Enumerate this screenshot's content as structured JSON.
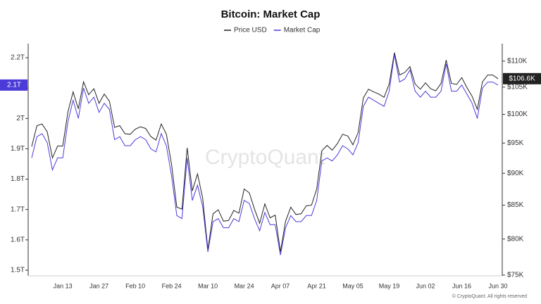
{
  "chart_data": {
    "type": "line",
    "title": "Bitcoin: Market Cap",
    "watermark": "CryptoQuant",
    "footer": "© CryptoQuant. All rights reserved",
    "categories": [
      null,
      null,
      null,
      null,
      null,
      null,
      "Jan 13",
      null,
      null,
      null,
      null,
      null,
      null,
      "Jan 27",
      null,
      null,
      null,
      null,
      null,
      null,
      "Feb 10",
      null,
      null,
      null,
      null,
      null,
      null,
      "Feb 24",
      null,
      null,
      null,
      null,
      null,
      null,
      "Mar 10",
      null,
      null,
      null,
      null,
      null,
      null,
      "Mar 24",
      null,
      null,
      null,
      null,
      null,
      null,
      "Apr 07",
      null,
      null,
      null,
      null,
      null,
      null,
      "Apr 21",
      null,
      null,
      null,
      null,
      null,
      null,
      "May 05",
      null,
      null,
      null,
      null,
      null,
      null,
      "May 19",
      null,
      null,
      null,
      null,
      null,
      null,
      "Jun 02",
      null,
      null,
      null,
      null,
      null,
      null,
      "Jun 16",
      null,
      null,
      null,
      null,
      null,
      null,
      "Jun 30"
    ],
    "series": [
      {
        "name": "Price USD",
        "color": "#222222",
        "axis": "y2",
        "last_label": "$106.6K",
        "values": [
          94400,
          98000,
          98300,
          96900,
          92500,
          94500,
          94500,
          100500,
          104100,
          101000,
          106000,
          103600,
          104700,
          102000,
          103700,
          102400,
          97700,
          98000,
          96600,
          96500,
          97400,
          97800,
          97500,
          96100,
          95500,
          98300,
          96500,
          91400,
          84700,
          84400,
          94200,
          87200,
          89900,
          86100,
          78500,
          83700,
          84300,
          82600,
          82700,
          84200,
          83800,
          87500,
          86900,
          84400,
          82300,
          85200,
          83100,
          83500,
          78200,
          82600,
          84700,
          83600,
          83700,
          84900,
          85000,
          87500,
          93700,
          94600,
          93800,
          94900,
          96500,
          96200,
          94700,
          96800,
          103000,
          104600,
          104100,
          103700,
          103100,
          105600,
          111700,
          107300,
          107800,
          108900,
          105600,
          104600,
          105800,
          104700,
          104300,
          105700,
          110200,
          105700,
          105500,
          106800,
          104900,
          103300,
          100900,
          106000,
          107300,
          107300,
          106600
        ]
      },
      {
        "name": "Market Cap",
        "color": "#4b3bd9",
        "axis": "y",
        "last_label": "2.1T",
        "values": [
          1.87,
          1.94,
          1.95,
          1.92,
          1.83,
          1.87,
          1.87,
          1.99,
          2.06,
          2.0,
          2.1,
          2.05,
          2.07,
          2.02,
          2.05,
          2.03,
          1.93,
          1.94,
          1.91,
          1.91,
          1.93,
          1.94,
          1.93,
          1.9,
          1.89,
          1.95,
          1.91,
          1.81,
          1.68,
          1.67,
          1.87,
          1.73,
          1.78,
          1.71,
          1.56,
          1.66,
          1.67,
          1.64,
          1.64,
          1.67,
          1.66,
          1.73,
          1.72,
          1.67,
          1.63,
          1.69,
          1.65,
          1.65,
          1.55,
          1.64,
          1.68,
          1.66,
          1.66,
          1.68,
          1.68,
          1.73,
          1.86,
          1.87,
          1.86,
          1.88,
          1.91,
          1.9,
          1.88,
          1.92,
          2.04,
          2.07,
          2.06,
          2.05,
          2.04,
          2.09,
          2.21,
          2.12,
          2.13,
          2.16,
          2.09,
          2.07,
          2.09,
          2.07,
          2.07,
          2.09,
          2.18,
          2.09,
          2.09,
          2.11,
          2.08,
          2.05,
          2.0,
          2.1,
          2.12,
          2.12,
          2.11
        ]
      }
    ],
    "ylim": [
      1.4814,
      2.2465
    ],
    "yticks": [
      {
        "value": 1.5,
        "label": "1.5T"
      },
      {
        "value": 1.6,
        "label": "1.6T"
      },
      {
        "value": 1.7,
        "label": "1.7T"
      },
      {
        "value": 1.8,
        "label": "1.8T"
      },
      {
        "value": 1.9,
        "label": "1.9T"
      },
      {
        "value": 2,
        "label": "2T"
      },
      {
        "value": 2.1,
        "label": "2.1T"
      },
      {
        "value": 2.2,
        "label": "2.2T"
      }
    ],
    "y2lim": [
      74900,
      113500
    ],
    "y2scale": "log",
    "y2ticks": [
      {
        "value": 75000,
        "label": "$75K"
      },
      {
        "value": 80000,
        "label": "$80K"
      },
      {
        "value": 85000,
        "label": "$85K"
      },
      {
        "value": 90000,
        "label": "$90K"
      },
      {
        "value": 95000,
        "label": "$95K"
      },
      {
        "value": 100000,
        "label": "$100K"
      },
      {
        "value": 105000,
        "label": "$105K"
      },
      {
        "value": 110000,
        "label": "$110K"
      }
    ],
    "grid": false
  }
}
